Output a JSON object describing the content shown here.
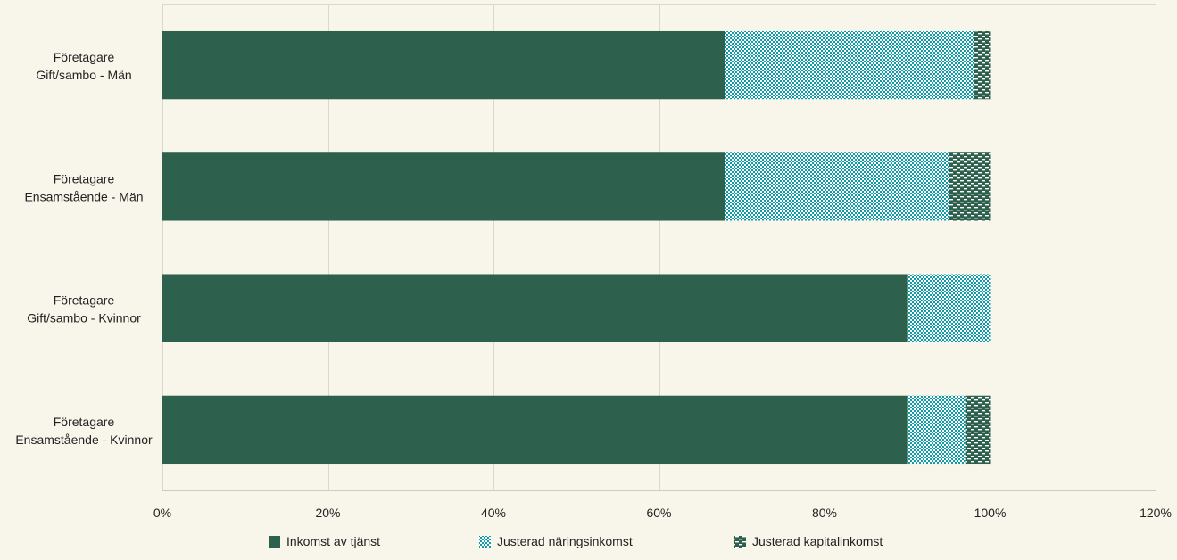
{
  "chart_data": {
    "type": "bar",
    "orientation": "horizontal",
    "stacked": true,
    "categories": [
      [
        "Företagare",
        "Gift/sambo - Män"
      ],
      [
        "Företagare",
        "Ensamstående - Män"
      ],
      [
        "Företagare",
        "Gift/sambo - Kvinnor"
      ],
      [
        "Företagare",
        "Ensamstående - Kvinnor"
      ]
    ],
    "series": [
      {
        "name": "Inkomst av tjänst",
        "values": [
          0.68,
          0.68,
          0.9,
          0.9
        ],
        "color": "#2e614d",
        "pattern": "solid"
      },
      {
        "name": "Justerad näringsinkomst",
        "values": [
          0.3,
          0.27,
          0.1,
          0.07
        ],
        "color": "#0e9aa6",
        "pattern": "checker"
      },
      {
        "name": "Justerad kapitalinkomst",
        "values": [
          0.02,
          0.05,
          0.0,
          0.03
        ],
        "color": "#2e614d",
        "pattern": "dash"
      }
    ],
    "xlim": [
      0,
      1.2
    ],
    "xticks": [
      0,
      0.2,
      0.4,
      0.6,
      0.8,
      1.0,
      1.2
    ],
    "xtick_labels": [
      "0%",
      "20%",
      "40%",
      "60%",
      "80%",
      "100%",
      "120%"
    ],
    "grid": "vertical",
    "legend_position": "bottom",
    "title": "",
    "xlabel": "",
    "ylabel": ""
  }
}
